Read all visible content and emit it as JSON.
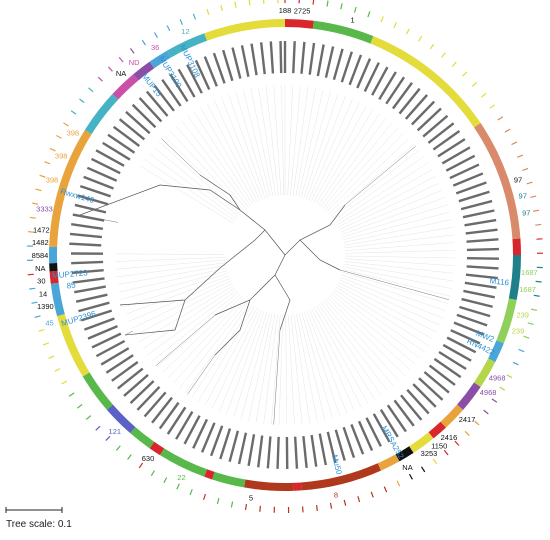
{
  "scale_bar": {
    "label": "Tree scale: 0.1",
    "value": 0.1
  },
  "colors": {
    "orange": "#e8a33c",
    "sky": "#4aa5d8",
    "purple": "#8a4ea6",
    "magenta": "#c94fa9",
    "teal": "#46b3c4",
    "yellow": "#e3dc3a",
    "lime": "#b6d64a",
    "green": "#58b94a",
    "red": "#d7262c",
    "salmon": "#d88a6a",
    "darkred": "#b0381c",
    "darkteal": "#1f7f8a",
    "black": "#111111",
    "blue": "#5a62c6",
    "lightgreen": "#8fcf5a"
  },
  "ring_segments": [
    {
      "color": "red",
      "start": 0,
      "end": 7
    },
    {
      "color": "green",
      "start": 7,
      "end": 22
    },
    {
      "color": "yellow",
      "start": 22,
      "end": 56
    },
    {
      "color": "salmon",
      "start": 56,
      "end": 86
    },
    {
      "color": "red",
      "start": 86,
      "end": 90
    },
    {
      "color": "darkteal",
      "start": 90,
      "end": 101
    },
    {
      "color": "lightgreen",
      "start": 101,
      "end": 112
    },
    {
      "color": "sky",
      "start": 112,
      "end": 117
    },
    {
      "color": "lime",
      "start": 117,
      "end": 124
    },
    {
      "color": "purple",
      "start": 124,
      "end": 131
    },
    {
      "color": "orange",
      "start": 131,
      "end": 137
    },
    {
      "color": "red",
      "start": 137,
      "end": 141
    },
    {
      "color": "yellow",
      "start": 141,
      "end": 147
    },
    {
      "color": "black",
      "start": 147,
      "end": 151
    },
    {
      "color": "orange",
      "start": 151,
      "end": 156
    },
    {
      "color": "darkred",
      "start": 156,
      "end": 176
    },
    {
      "color": "red",
      "start": 176,
      "end": 178
    },
    {
      "color": "darkred",
      "start": 178,
      "end": 190
    },
    {
      "color": "green",
      "start": 190,
      "end": 198
    },
    {
      "color": "red",
      "start": 198,
      "end": 200
    },
    {
      "color": "green",
      "start": 200,
      "end": 212
    },
    {
      "color": "red",
      "start": 212,
      "end": 215
    },
    {
      "color": "green",
      "start": 215,
      "end": 221
    },
    {
      "color": "blue",
      "start": 221,
      "end": 229
    },
    {
      "color": "green",
      "start": 229,
      "end": 239
    },
    {
      "color": "yellow",
      "start": 239,
      "end": 255
    },
    {
      "color": "sky",
      "start": 255,
      "end": 263
    },
    {
      "color": "red",
      "start": 263,
      "end": 266
    },
    {
      "color": "black",
      "start": 266,
      "end": 268
    },
    {
      "color": "sky",
      "start": 268,
      "end": 272
    },
    {
      "color": "orange",
      "start": 272,
      "end": 302
    },
    {
      "color": "teal",
      "start": 302,
      "end": 313
    },
    {
      "color": "magenta",
      "start": 313,
      "end": 320
    },
    {
      "color": "purple",
      "start": 320,
      "end": 325
    },
    {
      "color": "sky",
      "start": 325,
      "end": 330
    },
    {
      "color": "teal",
      "start": 330,
      "end": 340
    },
    {
      "color": "yellow",
      "start": 340,
      "end": 360
    }
  ],
  "st_labels": [
    {
      "text": "188",
      "angle": 0,
      "color": "black"
    },
    {
      "text": "2725",
      "angle": 4,
      "color": "black"
    },
    {
      "text": "1",
      "angle": 16,
      "color": "black"
    },
    {
      "text": "97",
      "angle": 72,
      "color": "black"
    },
    {
      "text": "97",
      "angle": 76,
      "color": "darkteal"
    },
    {
      "text": "97",
      "angle": 80,
      "color": "darkteal"
    },
    {
      "text": "1687",
      "angle": 94,
      "color": "lightgreen"
    },
    {
      "text": "1687",
      "angle": 98,
      "color": "lightgreen"
    },
    {
      "text": "239",
      "angle": 104,
      "color": "lime"
    },
    {
      "text": "239",
      "angle": 108,
      "color": "lime"
    },
    {
      "text": "4968",
      "angle": 120,
      "color": "purple"
    },
    {
      "text": "4968",
      "angle": 124,
      "color": "purple"
    },
    {
      "text": "2417",
      "angle": 132,
      "color": "black"
    },
    {
      "text": "2416",
      "angle": 138,
      "color": "black"
    },
    {
      "text": "1150",
      "angle": 141,
      "color": "black"
    },
    {
      "text": "3253",
      "angle": 144,
      "color": "black"
    },
    {
      "text": "NA",
      "angle": 150,
      "color": "black"
    },
    {
      "text": "8",
      "angle": 168,
      "color": "darkred"
    },
    {
      "text": "5",
      "angle": 188,
      "color": "black"
    },
    {
      "text": "22",
      "angle": 205,
      "color": "green"
    },
    {
      "text": "630",
      "angle": 214,
      "color": "black"
    },
    {
      "text": "121",
      "angle": 224,
      "color": "blue"
    },
    {
      "text": "45",
      "angle": 254,
      "color": "sky"
    },
    {
      "text": "1390",
      "angle": 258,
      "color": "black"
    },
    {
      "text": "14",
      "angle": 261,
      "color": "black"
    },
    {
      "text": "30",
      "angle": 264,
      "color": "black"
    },
    {
      "text": "NA",
      "angle": 267,
      "color": "black"
    },
    {
      "text": "8584",
      "angle": 270,
      "color": "black"
    },
    {
      "text": "1482",
      "angle": 273,
      "color": "black"
    },
    {
      "text": "1472",
      "angle": 276,
      "color": "black"
    },
    {
      "text": "3333",
      "angle": 281,
      "color": "purple"
    },
    {
      "text": "398",
      "angle": 288,
      "color": "orange"
    },
    {
      "text": "398",
      "angle": 294,
      "color": "orange"
    },
    {
      "text": "398",
      "angle": 300,
      "color": "orange"
    },
    {
      "text": "NA",
      "angle": 318,
      "color": "black"
    },
    {
      "text": "ND",
      "angle": 322,
      "color": "magenta"
    },
    {
      "text": "36",
      "angle": 328,
      "color": "magenta"
    },
    {
      "text": "12",
      "angle": 336,
      "color": "teal"
    }
  ],
  "blue_labels": [
    {
      "text": "M116",
      "angle": 97
    },
    {
      "text": "MW2",
      "angle": 112
    },
    {
      "text": "RN4422",
      "angle": 115
    },
    {
      "text": "MRSA252",
      "angle": 150
    },
    {
      "text": "Mu50",
      "angle": 166
    },
    {
      "text": "85",
      "angle": 262
    },
    {
      "text": "MUP2723",
      "angle": 265
    },
    {
      "text": "MUP2396",
      "angle": 253
    },
    {
      "text": "Rwxw146",
      "angle": 286
    },
    {
      "text": "MUP15",
      "angle": 322
    },
    {
      "text": "MUP3100",
      "angle": 328
    },
    {
      "text": "MUP3108",
      "angle": 334
    }
  ]
}
